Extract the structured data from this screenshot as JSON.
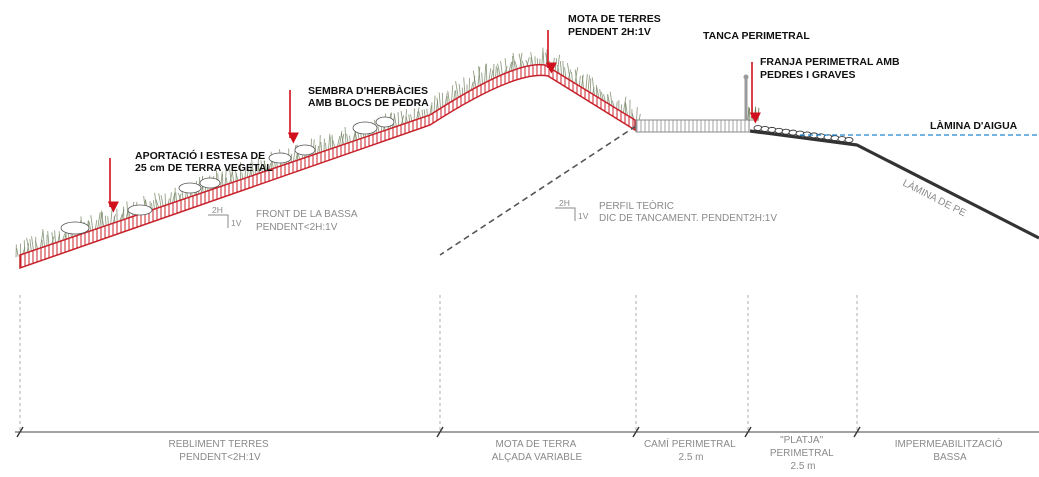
{
  "colors": {
    "embankment": "#c8202a",
    "hatch": "#c8202a",
    "vegetation": "#6f7f5c",
    "leader_arrow": "#d0101c",
    "water_line": "#1e88d8",
    "liner": "#333333",
    "guide_line": "#9a9a9a",
    "text_gray": "#8a8a8a"
  },
  "labels": {
    "mota_terres": [
      "MOTA DE TERRES",
      "PENDENT 2H:1V"
    ],
    "tanca_perimetral": [
      "TANCA PERIMETRAL"
    ],
    "franja_perimetral": [
      "FRANJA PERIMETRAL AMB",
      "PEDRES I GRAVES"
    ],
    "lamina_aigua": [
      "LÀMINA D'AIGUA"
    ],
    "sembra_herbacies": [
      "SEMBRA D'HERBÀCIES",
      "AMB BLOCS DE PEDRA"
    ],
    "aportacio_terra": [
      "APORTACIÓ I ESTESA DE",
      "25 cm DE TERRA VEGETAL"
    ],
    "front_bassa": [
      "FRONT DE LA BASSA",
      "PENDENT<2H:1V"
    ],
    "perfil_teoric": [
      "PERFIL TEÒRIC",
      "DIC DE TANCAMENT. PENDENT2H:1V"
    ],
    "lamina_pe": "LÀMINA DE PE"
  },
  "slope_symbols": {
    "left": {
      "h": "2H",
      "v": "1V"
    },
    "center": {
      "h": "2H",
      "v": "1V"
    }
  },
  "zones": [
    {
      "id": "rebliment",
      "lines": [
        "REBLIMENT TERRES",
        "PENDENT<2H:1V"
      ]
    },
    {
      "id": "mota",
      "lines": [
        "MOTA DE TERRA",
        "ALÇADA VARIABLE"
      ]
    },
    {
      "id": "cami",
      "lines": [
        "CAMÍ PERIMETRAL",
        "2.5 m"
      ]
    },
    {
      "id": "platja",
      "lines": [
        "\"PLATJA\"",
        "PERIMETRAL",
        "2.5 m"
      ]
    },
    {
      "id": "impermeabilitzacio",
      "lines": [
        "IMPERMEABILITZACIÓ",
        "BASSA"
      ]
    }
  ]
}
